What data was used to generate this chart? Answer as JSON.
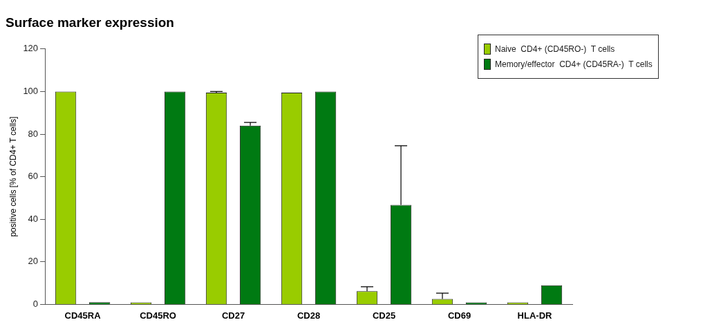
{
  "chart_data": {
    "type": "bar",
    "title": "Surface marker expression",
    "ylabel": "positive cells [% of CD4+ T cells]",
    "categories": [
      "CD45RA",
      "CD45RO",
      "CD27",
      "CD28",
      "CD25",
      "CD69",
      "HLA-DR"
    ],
    "series": [
      {
        "name": "Naive  CD4+ (CD45RO-)  T cells",
        "color": "#99cc00",
        "values": [
          100,
          0.5,
          99.5,
          99.5,
          6.2,
          2.6,
          0.2
        ],
        "errors": [
          null,
          null,
          [
            99.5,
            100
          ],
          null,
          [
            6.2,
            8.3
          ],
          [
            2.6,
            5.3
          ],
          null
        ]
      },
      {
        "name": "Memory/effector  CD4+ (CD45RA-)  T cells",
        "color": "#007a12",
        "values": [
          1,
          100,
          84,
          100,
          46.7,
          0.2,
          9
        ],
        "errors": [
          null,
          null,
          [
            84,
            85.5
          ],
          null,
          [
            46.7,
            74.5
          ],
          null,
          null
        ]
      }
    ],
    "ylim": [
      0,
      120
    ],
    "yticks": [
      0,
      20,
      40,
      60,
      80,
      100,
      120
    ],
    "grid": false,
    "legend": "top right"
  }
}
